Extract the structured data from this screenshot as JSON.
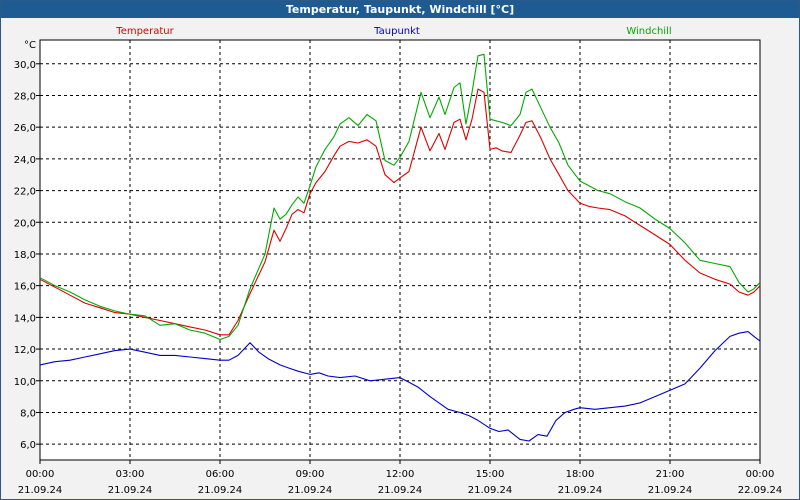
{
  "window_title": "Temperatur, Taupunkt, Windchill [°C]",
  "chart_data": {
    "type": "line",
    "title": "Temperatur, Taupunkt, Windchill [°C]",
    "y_unit": "°C",
    "ylim": [
      5.0,
      31.5
    ],
    "y_ticks": [
      "6,0",
      "8,0",
      "10,0",
      "12,0",
      "14,0",
      "16,0",
      "18,0",
      "20,0",
      "22,0",
      "24,0",
      "26,0",
      "28,0",
      "30,0"
    ],
    "y_tick_values": [
      6,
      8,
      10,
      12,
      14,
      16,
      18,
      20,
      22,
      24,
      26,
      28,
      30
    ],
    "x_range_hours": [
      0,
      24
    ],
    "x_ticks": [
      {
        "time": "00:00",
        "date": "21.09.24"
      },
      {
        "time": "03:00",
        "date": "21.09.24"
      },
      {
        "time": "06:00",
        "date": "21.09.24"
      },
      {
        "time": "09:00",
        "date": "21.09.24"
      },
      {
        "time": "12:00",
        "date": "21.09.24"
      },
      {
        "time": "15:00",
        "date": "21.09.24"
      },
      {
        "time": "18:00",
        "date": "21.09.24"
      },
      {
        "time": "21:00",
        "date": "21.09.24"
      },
      {
        "time": "00:00",
        "date": "22.09.24"
      }
    ],
    "grid": true,
    "series": [
      {
        "name": "Temperatur",
        "color": "#dd0000",
        "x": [
          0,
          0.5,
          1,
          1.5,
          2,
          2.5,
          3,
          3.5,
          4,
          4.5,
          5,
          5.5,
          6,
          6.3,
          6.6,
          7,
          7.5,
          7.8,
          8,
          8.2,
          8.4,
          8.6,
          8.8,
          9,
          9.2,
          9.5,
          9.8,
          10,
          10.3,
          10.6,
          10.9,
          11.2,
          11.5,
          11.8,
          12,
          12.3,
          12.7,
          13,
          13.3,
          13.5,
          13.8,
          14,
          14.2,
          14.4,
          14.6,
          14.8,
          15,
          15.2,
          15.4,
          15.7,
          16,
          16.2,
          16.4,
          16.7,
          17,
          17.3,
          17.6,
          18,
          18.3,
          18.6,
          19,
          19.5,
          20,
          20.5,
          21,
          21.5,
          22,
          22.5,
          23,
          23.3,
          23.6,
          23.8,
          24
        ],
        "y": [
          16.4,
          15.9,
          15.4,
          14.9,
          14.6,
          14.3,
          14.2,
          14.0,
          13.8,
          13.6,
          13.4,
          13.2,
          12.9,
          12.9,
          13.8,
          15.5,
          17.5,
          19.5,
          18.8,
          19.6,
          20.5,
          20.8,
          20.6,
          21.8,
          22.5,
          23.2,
          24.2,
          24.8,
          25.1,
          25.0,
          25.2,
          24.8,
          23.0,
          22.5,
          22.8,
          23.2,
          26.0,
          24.5,
          25.6,
          24.6,
          26.3,
          26.5,
          25.2,
          26.5,
          28.4,
          28.2,
          24.6,
          24.7,
          24.5,
          24.4,
          25.5,
          26.3,
          26.4,
          25.3,
          24.0,
          23.0,
          22.0,
          21.2,
          21.0,
          20.9,
          20.8,
          20.4,
          19.8,
          19.2,
          18.6,
          17.6,
          16.8,
          16.4,
          16.1,
          15.6,
          15.4,
          15.6,
          16.0
        ]
      },
      {
        "name": "Taupunkt",
        "color": "#0000cc",
        "x": [
          0,
          0.5,
          1,
          1.5,
          2,
          2.5,
          3,
          3.5,
          4,
          4.5,
          5,
          5.5,
          6,
          6.3,
          6.6,
          7,
          7.3,
          7.6,
          8,
          8.3,
          8.6,
          9,
          9.3,
          9.6,
          10,
          10.5,
          11,
          11.5,
          12,
          12.3,
          12.6,
          13,
          13.3,
          13.6,
          14,
          14.3,
          14.6,
          15,
          15.3,
          15.6,
          16,
          16.3,
          16.6,
          16.9,
          17.2,
          17.5,
          17.8,
          18,
          18.5,
          19,
          19.5,
          20,
          20.5,
          21,
          21.5,
          22,
          22.5,
          23,
          23.3,
          23.6,
          23.8,
          24
        ],
        "y": [
          11.0,
          11.2,
          11.3,
          11.5,
          11.7,
          11.9,
          12.0,
          11.8,
          11.6,
          11.6,
          11.5,
          11.4,
          11.3,
          11.3,
          11.6,
          12.4,
          11.8,
          11.4,
          11.0,
          10.8,
          10.6,
          10.4,
          10.5,
          10.3,
          10.2,
          10.3,
          10.0,
          10.1,
          10.2,
          9.9,
          9.6,
          9.0,
          8.6,
          8.2,
          8.0,
          7.8,
          7.5,
          7.0,
          6.8,
          6.9,
          6.3,
          6.2,
          6.6,
          6.5,
          7.5,
          8.0,
          8.2,
          8.3,
          8.2,
          8.3,
          8.4,
          8.6,
          9.0,
          9.4,
          9.8,
          10.8,
          11.9,
          12.8,
          13.0,
          13.1,
          12.8,
          12.5
        ]
      },
      {
        "name": "Windchill",
        "color": "#00aa00",
        "x": [
          0,
          0.5,
          1,
          1.5,
          2,
          2.5,
          3,
          3.5,
          4,
          4.5,
          5,
          5.5,
          6,
          6.3,
          6.6,
          7,
          7.5,
          7.8,
          8,
          8.2,
          8.4,
          8.6,
          8.8,
          9,
          9.2,
          9.5,
          9.8,
          10,
          10.3,
          10.6,
          10.9,
          11.2,
          11.5,
          11.8,
          12,
          12.3,
          12.7,
          13,
          13.3,
          13.5,
          13.8,
          14,
          14.2,
          14.4,
          14.6,
          14.8,
          15,
          15.2,
          15.4,
          15.7,
          16,
          16.2,
          16.4,
          16.7,
          17,
          17.3,
          17.6,
          18,
          18.3,
          18.6,
          19,
          19.5,
          20,
          20.5,
          21,
          21.5,
          22,
          22.5,
          23,
          23.3,
          23.6,
          23.8,
          24
        ],
        "y": [
          16.5,
          16.0,
          15.6,
          15.1,
          14.7,
          14.4,
          14.2,
          14.1,
          13.5,
          13.6,
          13.2,
          13.0,
          12.6,
          12.8,
          13.5,
          15.8,
          18.0,
          20.9,
          20.2,
          20.5,
          21.1,
          21.6,
          21.2,
          22.3,
          23.5,
          24.6,
          25.4,
          26.2,
          26.6,
          26.1,
          26.8,
          26.4,
          23.9,
          23.6,
          24.1,
          25.1,
          28.2,
          26.6,
          27.9,
          26.8,
          28.5,
          28.8,
          26.2,
          28.2,
          30.5,
          30.6,
          26.5,
          26.4,
          26.3,
          26.1,
          26.8,
          28.2,
          28.4,
          27.2,
          26.0,
          25.0,
          23.6,
          22.6,
          22.3,
          22.0,
          21.8,
          21.3,
          20.9,
          20.2,
          19.6,
          18.7,
          17.6,
          17.4,
          17.2,
          16.2,
          15.6,
          15.8,
          16.2
        ]
      }
    ]
  }
}
